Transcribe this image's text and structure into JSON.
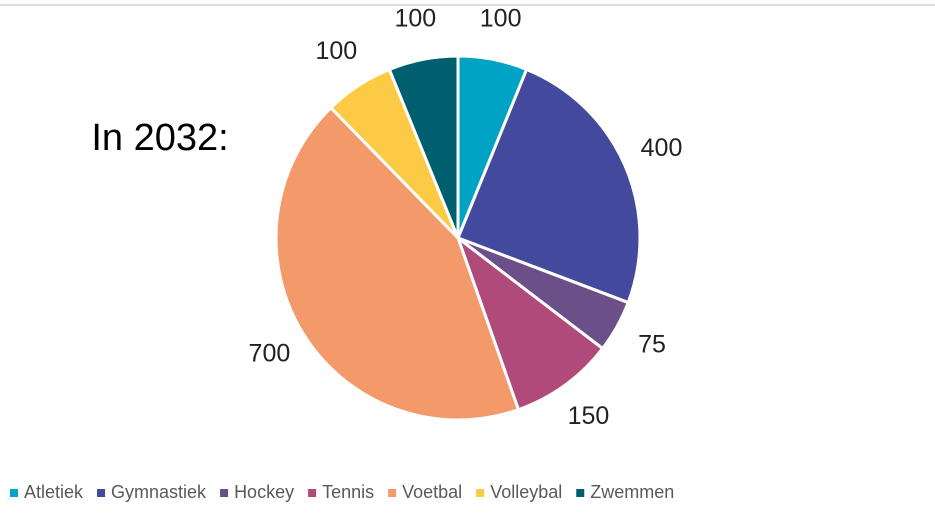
{
  "chart_data": {
    "type": "pie",
    "annotation": "In 2032:",
    "categories": [
      "Atletiek",
      "Gymnastiek",
      "Hockey",
      "Tennis",
      "Voetbal",
      "Volleybal",
      "Zwemmen"
    ],
    "values": [
      100,
      400,
      75,
      150,
      700,
      100,
      100
    ],
    "colors": [
      "#00a3c3",
      "#434a9e",
      "#6a4f88",
      "#b04a7a",
      "#f3996a",
      "#fdca45",
      "#005f6f"
    ],
    "legend": "bottom"
  }
}
